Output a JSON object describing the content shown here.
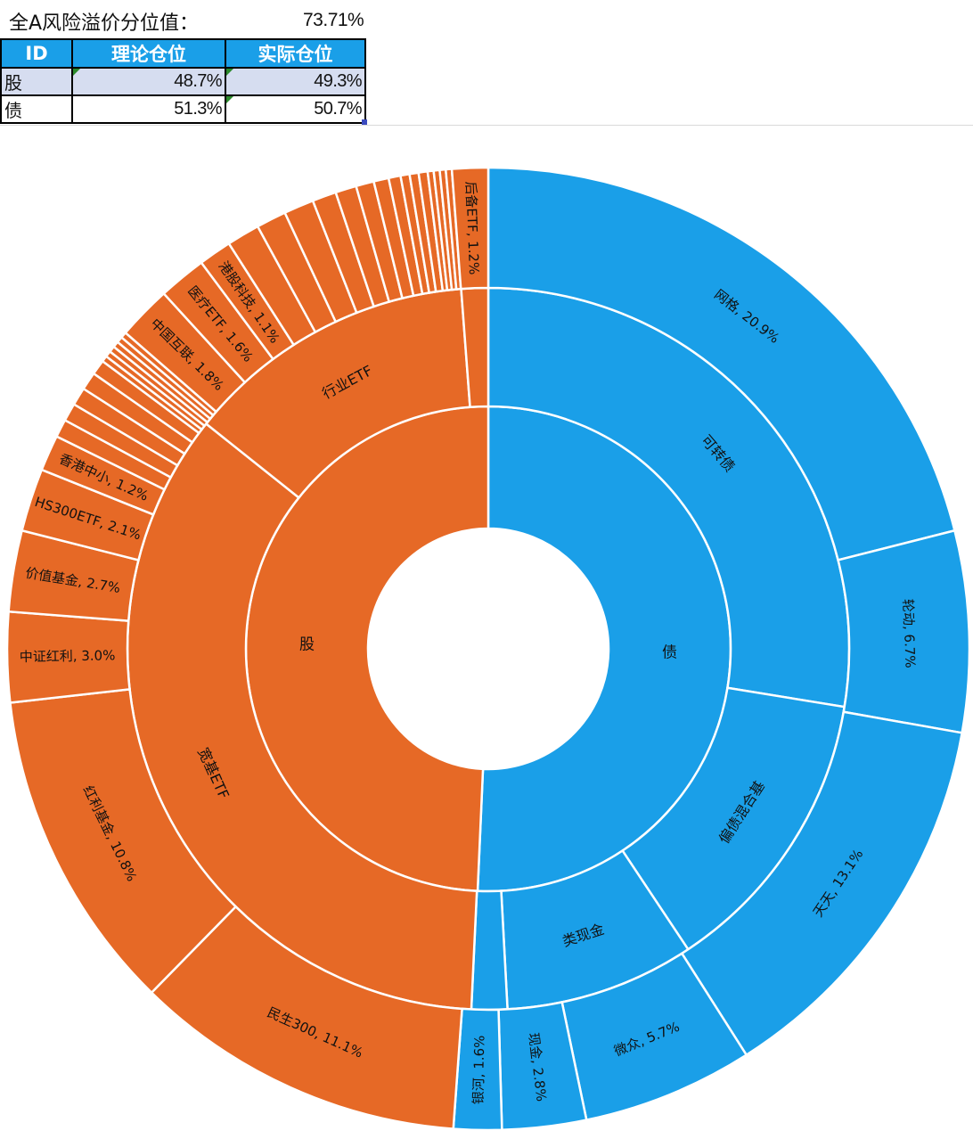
{
  "header": {
    "label": "全A风险溢价分位值：",
    "value": "73.71%"
  },
  "table": {
    "columns": [
      "ID",
      "理论仓位",
      "实际仓位"
    ],
    "rows": [
      {
        "id": "股",
        "theory": "48.7%",
        "actual": "49.3%"
      },
      {
        "id": "债",
        "theory": "51.3%",
        "actual": "50.7%"
      }
    ]
  },
  "chart_data": {
    "type": "sunburst",
    "colors": {
      "stock": "#e66926",
      "bond": "#1a9fe8",
      "border": "#ffffff"
    },
    "start_angle_deg": 0,
    "direction": "clockwise",
    "rings": {
      "inner": [
        {
          "label": "债",
          "value": 50.7,
          "group": "bond"
        },
        {
          "label": "股",
          "value": 49.3,
          "group": "stock"
        }
      ],
      "middle": [
        {
          "label": "可转债",
          "value": 27.6,
          "group": "bond"
        },
        {
          "label": "偏债混合基",
          "value": 13.1,
          "group": "bond"
        },
        {
          "label": "类现金",
          "value": 8.5,
          "group": "bond"
        },
        {
          "label": "",
          "value": 1.6,
          "group": "bond"
        },
        {
          "label": "宽基ETF",
          "value": 35.0,
          "group": "stock"
        },
        {
          "label": "行业ETF",
          "value": 13.1,
          "group": "stock"
        },
        {
          "label": "",
          "value": 1.2,
          "group": "stock"
        }
      ],
      "outer": [
        {
          "label": "网格, 20.9%",
          "value": 20.9,
          "group": "bond"
        },
        {
          "label": "轮动, 6.7%",
          "value": 6.7,
          "group": "bond"
        },
        {
          "label": "天天, 13.1%",
          "value": 13.1,
          "group": "bond"
        },
        {
          "label": "微众, 5.7%",
          "value": 5.7,
          "group": "bond"
        },
        {
          "label": "现金, 2.8%",
          "value": 2.8,
          "group": "bond"
        },
        {
          "label": "银河, 1.6%",
          "value": 1.6,
          "group": "bond"
        },
        {
          "label": "民生300, 11.1%",
          "value": 11.1,
          "group": "stock"
        },
        {
          "label": "红利基金, 10.8%",
          "value": 10.8,
          "group": "stock"
        },
        {
          "label": "中证红利, 3.0%",
          "value": 3.0,
          "group": "stock"
        },
        {
          "label": "价值基金, 2.7%",
          "value": 2.7,
          "group": "stock"
        },
        {
          "label": "HS300ETF, 2.1%",
          "value": 2.1,
          "group": "stock"
        },
        {
          "label": "香港中小, 1.2%",
          "value": 1.2,
          "group": "stock"
        },
        {
          "label": "",
          "value": 0.6,
          "group": "stock"
        },
        {
          "label": "",
          "value": 0.6,
          "group": "stock"
        },
        {
          "label": "",
          "value": 0.6,
          "group": "stock"
        },
        {
          "label": "",
          "value": 0.6,
          "group": "stock"
        },
        {
          "label": "",
          "value": 0.5,
          "group": "stock"
        },
        {
          "label": "",
          "value": 0.2,
          "group": "stock"
        },
        {
          "label": "",
          "value": 0.2,
          "group": "stock"
        },
        {
          "label": "",
          "value": 0.2,
          "group": "stock"
        },
        {
          "label": "",
          "value": 0.2,
          "group": "stock"
        },
        {
          "label": "",
          "value": 0.2,
          "group": "stock"
        },
        {
          "label": "",
          "value": 0.2,
          "group": "stock"
        },
        {
          "label": "中国互联, 1.8%",
          "value": 1.8,
          "group": "stock"
        },
        {
          "label": "医疗ETF, 1.6%",
          "value": 1.6,
          "group": "stock"
        },
        {
          "label": "港股科技, 1.1%",
          "value": 1.1,
          "group": "stock"
        },
        {
          "label": "",
          "value": 1.1,
          "group": "stock"
        },
        {
          "label": "",
          "value": 1.0,
          "group": "stock"
        },
        {
          "label": "",
          "value": 1.0,
          "group": "stock"
        },
        {
          "label": "",
          "value": 0.8,
          "group": "stock"
        },
        {
          "label": "",
          "value": 0.7,
          "group": "stock"
        },
        {
          "label": "",
          "value": 0.6,
          "group": "stock"
        },
        {
          "label": "",
          "value": 0.5,
          "group": "stock"
        },
        {
          "label": "",
          "value": 0.4,
          "group": "stock"
        },
        {
          "label": "",
          "value": 0.3,
          "group": "stock"
        },
        {
          "label": "",
          "value": 0.3,
          "group": "stock"
        },
        {
          "label": "",
          "value": 0.3,
          "group": "stock"
        },
        {
          "label": "",
          "value": 0.2,
          "group": "stock"
        },
        {
          "label": "",
          "value": 0.2,
          "group": "stock"
        },
        {
          "label": "",
          "value": 0.2,
          "group": "stock"
        },
        {
          "label": "",
          "value": 0.2,
          "group": "stock"
        },
        {
          "label": "后备ETF, 1.2%",
          "value": 1.2,
          "group": "stock"
        }
      ]
    }
  }
}
